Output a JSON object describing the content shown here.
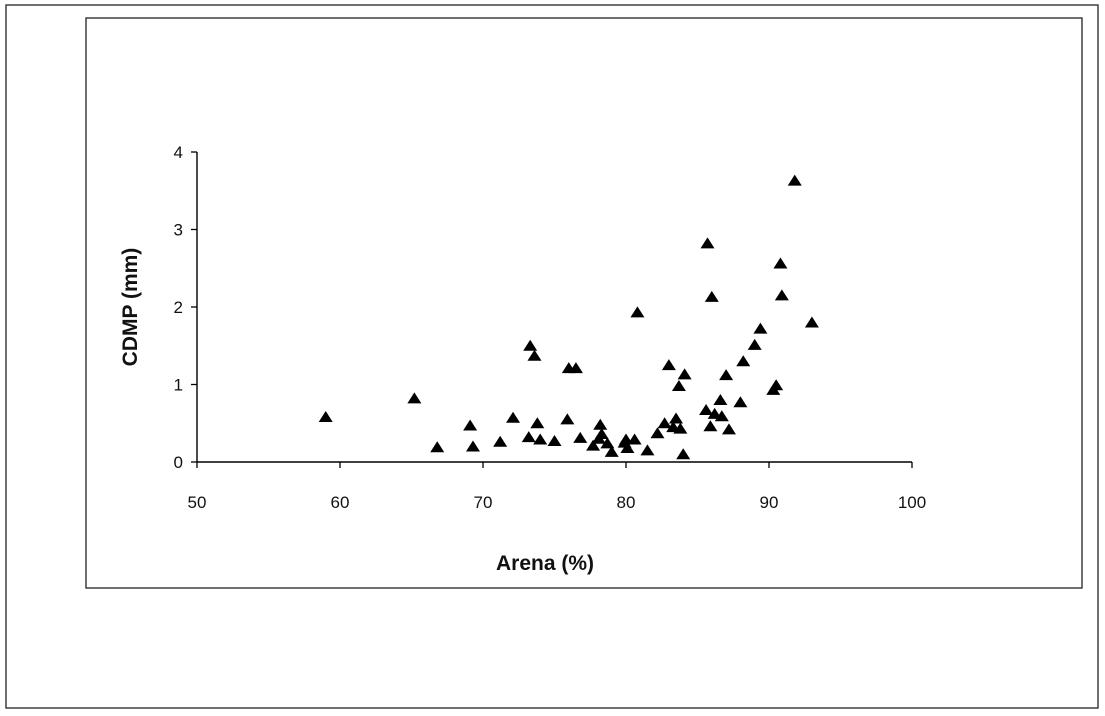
{
  "chart_data": {
    "type": "scatter",
    "xlabel": "Arena (%)",
    "ylabel": "CDMP (mm)",
    "xlim": [
      50,
      100
    ],
    "ylim": [
      0,
      4
    ],
    "xticks": [
      50,
      60,
      70,
      80,
      90,
      100
    ],
    "yticks": [
      0,
      1,
      2,
      3,
      4
    ],
    "grid": false,
    "legend": "none",
    "marker": "triangle",
    "marker_color": "#000000",
    "series": [
      {
        "points": [
          [
            59.0,
            0.58
          ],
          [
            65.2,
            0.82
          ],
          [
            66.8,
            0.19
          ],
          [
            69.1,
            0.47
          ],
          [
            69.3,
            0.2
          ],
          [
            71.2,
            0.26
          ],
          [
            72.1,
            0.57
          ],
          [
            73.2,
            0.32
          ],
          [
            73.3,
            1.5
          ],
          [
            73.6,
            1.37
          ],
          [
            73.8,
            0.5
          ],
          [
            74.0,
            0.29
          ],
          [
            75.0,
            0.27
          ],
          [
            75.9,
            0.55
          ],
          [
            76.0,
            1.21
          ],
          [
            76.5,
            1.21
          ],
          [
            76.8,
            0.31
          ],
          [
            77.7,
            0.21
          ],
          [
            78.1,
            0.3
          ],
          [
            78.2,
            0.48
          ],
          [
            78.3,
            0.36
          ],
          [
            78.7,
            0.24
          ],
          [
            79.0,
            0.13
          ],
          [
            79.9,
            0.25
          ],
          [
            80.0,
            0.29
          ],
          [
            80.1,
            0.18
          ],
          [
            80.6,
            0.29
          ],
          [
            80.8,
            1.93
          ],
          [
            81.5,
            0.15
          ],
          [
            82.2,
            0.37
          ],
          [
            82.7,
            0.5
          ],
          [
            83.0,
            1.25
          ],
          [
            83.3,
            0.45
          ],
          [
            83.5,
            0.56
          ],
          [
            83.7,
            0.98
          ],
          [
            83.8,
            0.43
          ],
          [
            84.0,
            0.1
          ],
          [
            84.1,
            1.13
          ],
          [
            85.6,
            0.67
          ],
          [
            85.7,
            2.82
          ],
          [
            85.9,
            0.46
          ],
          [
            86.0,
            2.13
          ],
          [
            86.2,
            0.62
          ],
          [
            86.6,
            0.8
          ],
          [
            86.7,
            0.59
          ],
          [
            87.0,
            1.12
          ],
          [
            87.2,
            0.42
          ],
          [
            88.0,
            0.77
          ],
          [
            88.2,
            1.3
          ],
          [
            89.0,
            1.51
          ],
          [
            89.4,
            1.72
          ],
          [
            90.3,
            0.93
          ],
          [
            90.5,
            0.99
          ],
          [
            90.8,
            2.56
          ],
          [
            90.9,
            2.15
          ],
          [
            91.8,
            3.63
          ],
          [
            93.0,
            1.8
          ]
        ]
      }
    ]
  }
}
